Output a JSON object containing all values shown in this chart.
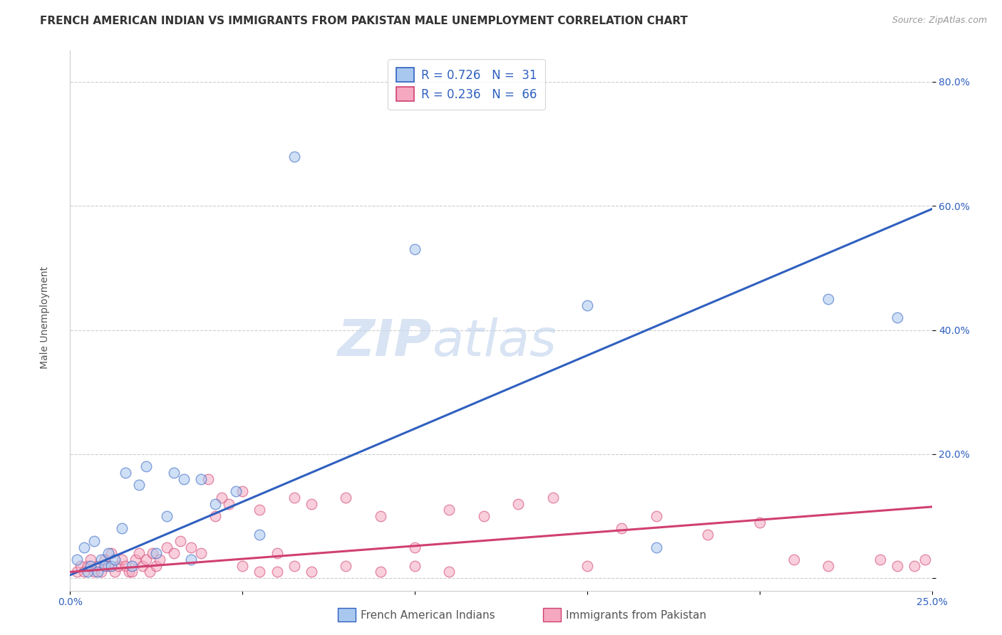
{
  "title": "FRENCH AMERICAN INDIAN VS IMMIGRANTS FROM PAKISTAN MALE UNEMPLOYMENT CORRELATION CHART",
  "source": "Source: ZipAtlas.com",
  "ylabel": "Male Unemployment",
  "xlim": [
    0.0,
    0.25
  ],
  "ylim": [
    -0.02,
    0.85
  ],
  "xticks": [
    0.0,
    0.05,
    0.1,
    0.15,
    0.2,
    0.25
  ],
  "yticks": [
    0.0,
    0.2,
    0.4,
    0.6,
    0.8
  ],
  "legend1_R": "0.726",
  "legend1_N": "31",
  "legend2_R": "0.236",
  "legend2_N": "66",
  "blue_color": "#A8C8F0",
  "pink_color": "#F5A8C0",
  "blue_line_color": "#3060C0",
  "pink_line_color": "#D04070",
  "watermark_zip": "ZIP",
  "watermark_atlas": "atlas",
  "blue_scatter_x": [
    0.002,
    0.004,
    0.005,
    0.006,
    0.007,
    0.008,
    0.009,
    0.01,
    0.011,
    0.012,
    0.013,
    0.015,
    0.016,
    0.018,
    0.02,
    0.022,
    0.025,
    0.028,
    0.03,
    0.033,
    0.035,
    0.038,
    0.042,
    0.048,
    0.055,
    0.065,
    0.1,
    0.15,
    0.17,
    0.22,
    0.24
  ],
  "blue_scatter_y": [
    0.03,
    0.05,
    0.01,
    0.02,
    0.06,
    0.01,
    0.03,
    0.02,
    0.04,
    0.02,
    0.03,
    0.08,
    0.17,
    0.02,
    0.15,
    0.18,
    0.04,
    0.1,
    0.17,
    0.16,
    0.03,
    0.16,
    0.12,
    0.14,
    0.07,
    0.68,
    0.53,
    0.44,
    0.05,
    0.45,
    0.42
  ],
  "pink_scatter_x": [
    0.002,
    0.003,
    0.004,
    0.005,
    0.006,
    0.007,
    0.008,
    0.009,
    0.01,
    0.011,
    0.012,
    0.013,
    0.014,
    0.015,
    0.016,
    0.017,
    0.018,
    0.019,
    0.02,
    0.021,
    0.022,
    0.023,
    0.024,
    0.025,
    0.026,
    0.028,
    0.03,
    0.032,
    0.035,
    0.038,
    0.04,
    0.042,
    0.044,
    0.046,
    0.05,
    0.055,
    0.06,
    0.065,
    0.07,
    0.08,
    0.09,
    0.1,
    0.11,
    0.12,
    0.13,
    0.14,
    0.15,
    0.16,
    0.17,
    0.185,
    0.2,
    0.21,
    0.22,
    0.235,
    0.24,
    0.245,
    0.248,
    0.05,
    0.055,
    0.06,
    0.065,
    0.07,
    0.08,
    0.09,
    0.1,
    0.11
  ],
  "pink_scatter_y": [
    0.01,
    0.02,
    0.01,
    0.02,
    0.03,
    0.01,
    0.02,
    0.01,
    0.03,
    0.02,
    0.04,
    0.01,
    0.02,
    0.03,
    0.02,
    0.01,
    0.01,
    0.03,
    0.04,
    0.02,
    0.03,
    0.01,
    0.04,
    0.02,
    0.03,
    0.05,
    0.04,
    0.06,
    0.05,
    0.04,
    0.16,
    0.1,
    0.13,
    0.12,
    0.14,
    0.11,
    0.04,
    0.13,
    0.12,
    0.13,
    0.1,
    0.05,
    0.11,
    0.1,
    0.12,
    0.13,
    0.02,
    0.08,
    0.1,
    0.07,
    0.09,
    0.03,
    0.02,
    0.03,
    0.02,
    0.02,
    0.03,
    0.02,
    0.01,
    0.01,
    0.02,
    0.01,
    0.02,
    0.01,
    0.02,
    0.01
  ],
  "blue_line_x": [
    0.0,
    0.25
  ],
  "blue_line_y": [
    0.005,
    0.595
  ],
  "pink_line_x": [
    0.0,
    0.25
  ],
  "pink_line_y": [
    0.01,
    0.115
  ],
  "background_color": "#FFFFFF",
  "grid_color": "#CCCCCC",
  "title_fontsize": 11,
  "axis_label_fontsize": 10,
  "tick_fontsize": 10,
  "legend_fontsize": 12,
  "watermark_fontsize": 52
}
